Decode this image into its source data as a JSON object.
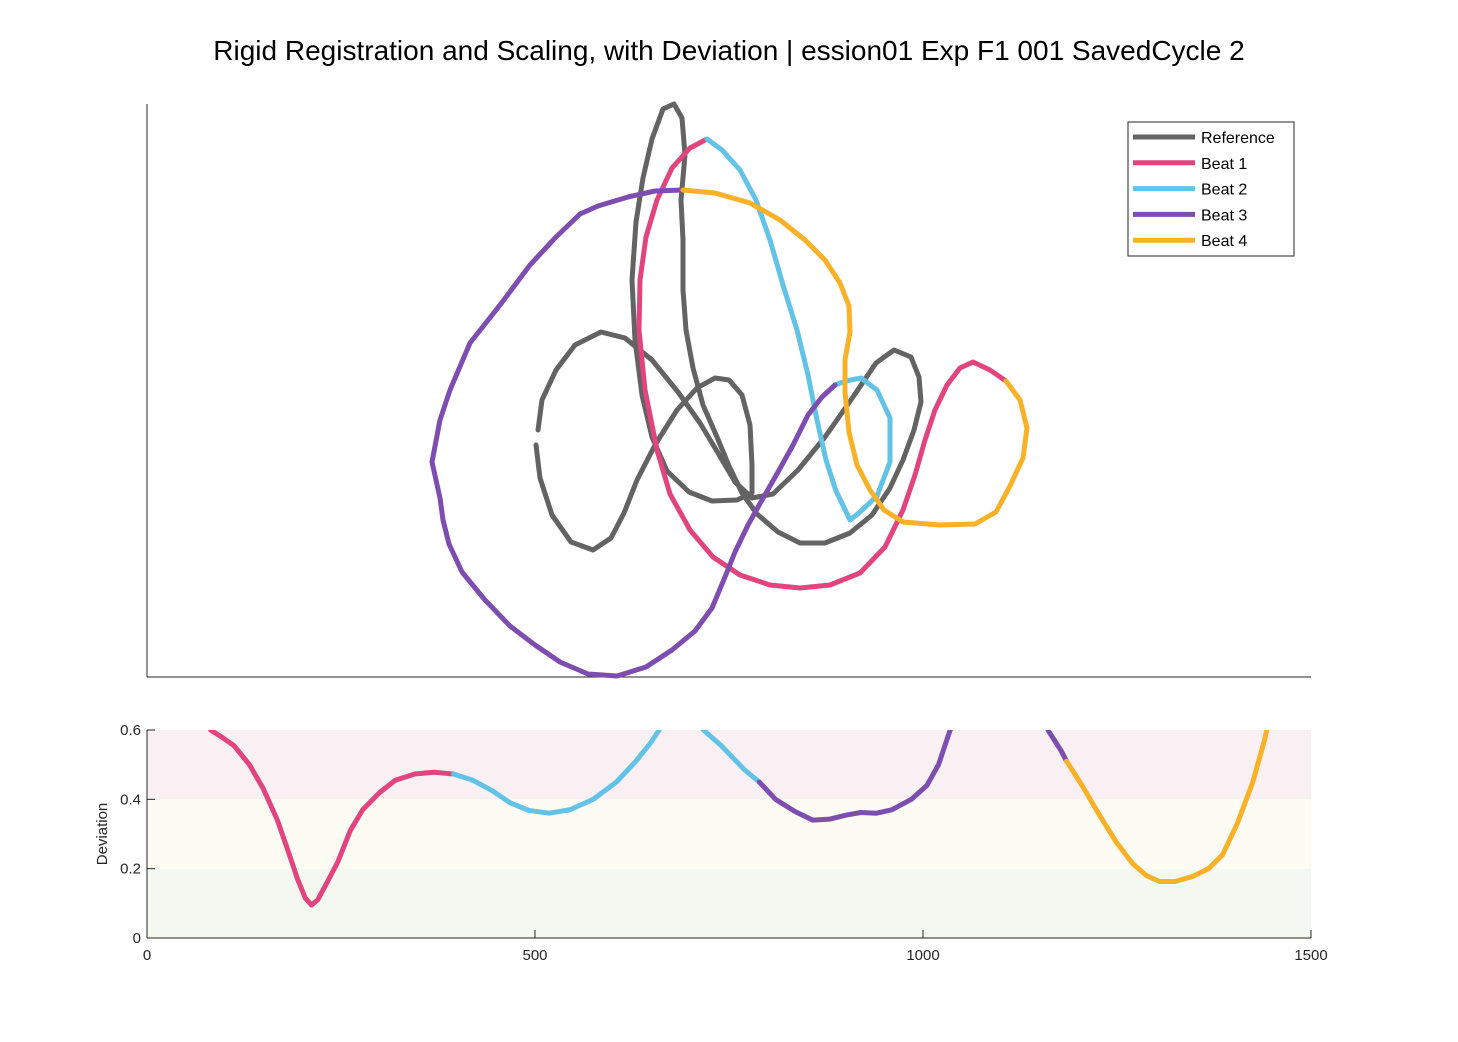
{
  "chart_data": [
    {
      "type": "line",
      "title": "Rigid Registration and Scaling, with Deviation | ession01 Exp F1 001 SavedCycle 2",
      "axes_visible": "left and bottom lines only, no ticks",
      "legend": {
        "placement": "top-right",
        "entries": [
          {
            "name": "Reference",
            "color": "#636363"
          },
          {
            "name": "Beat 1",
            "color": "#E2457D"
          },
          {
            "name": "Beat 2",
            "color": "#63C3E6"
          },
          {
            "name": "Beat 3",
            "color": "#7D4EB0"
          },
          {
            "name": "Beat 4",
            "color": "#F9B128"
          }
        ]
      },
      "series": [
        {
          "name": "Reference",
          "color": "#636363",
          "points": [
            [
              538,
              430
            ],
            [
              542,
              400
            ],
            [
              556,
              370
            ],
            [
              575,
              345
            ],
            [
              601,
              332
            ],
            [
              625,
              338
            ],
            [
              652,
              360
            ],
            [
              678,
              392
            ],
            [
              700,
              423
            ],
            [
              718,
              453
            ],
            [
              735,
              482
            ],
            [
              752,
              498
            ],
            [
              773,
              494
            ],
            [
              798,
              470
            ],
            [
              825,
              437
            ],
            [
              853,
              397
            ],
            [
              876,
              363
            ],
            [
              894,
              350
            ],
            [
              911,
              357
            ],
            [
              919,
              377
            ],
            [
              921,
              402
            ],
            [
              914,
              430
            ],
            [
              903,
              460
            ],
            [
              890,
              488
            ],
            [
              872,
              515
            ],
            [
              850,
              533
            ],
            [
              825,
              543
            ],
            [
              800,
              543
            ],
            [
              778,
              532
            ],
            [
              757,
              514
            ],
            [
              742,
              493
            ],
            [
              729,
              466
            ],
            [
              717,
              437
            ],
            [
              703,
              405
            ],
            [
              693,
              368
            ],
            [
              686,
              330
            ],
            [
              683,
              290
            ],
            [
              683,
              240
            ],
            [
              681,
              200
            ],
            [
              685,
              155
            ],
            [
              682,
              118
            ],
            [
              674,
              104
            ],
            [
              663,
              109
            ],
            [
              652,
              139
            ],
            [
              643,
              178
            ],
            [
              636,
              222
            ],
            [
              632,
              280
            ],
            [
              635,
              340
            ],
            [
              642,
              395
            ],
            [
              652,
              437
            ],
            [
              667,
              471
            ],
            [
              689,
              492
            ],
            [
              712,
              501
            ],
            [
              737,
              500
            ],
            [
              752,
              493
            ],
            [
              752,
              465
            ],
            [
              750,
              425
            ],
            [
              742,
              395
            ],
            [
              729,
              380
            ],
            [
              715,
              378
            ],
            [
              697,
              388
            ],
            [
              677,
              410
            ],
            [
              655,
              445
            ],
            [
              637,
              480
            ],
            [
              624,
              513
            ],
            [
              611,
              538
            ],
            [
              593,
              550
            ],
            [
              571,
              542
            ],
            [
              552,
              515
            ],
            [
              540,
              478
            ],
            [
              536,
              445
            ]
          ]
        },
        {
          "name": "Beat 1",
          "color": "#E2457D",
          "points": [
            [
              707,
              139
            ],
            [
              690,
              148
            ],
            [
              672,
              168
            ],
            [
              657,
              200
            ],
            [
              646,
              237
            ],
            [
              640,
              280
            ],
            [
              639,
              330
            ],
            [
              645,
              390
            ],
            [
              657,
              450
            ],
            [
              670,
              494
            ],
            [
              690,
              530
            ],
            [
              713,
              557
            ],
            [
              740,
              575
            ],
            [
              770,
              585
            ],
            [
              800,
              588
            ],
            [
              830,
              585
            ],
            [
              860,
              573
            ],
            [
              885,
              547
            ],
            [
              903,
              510
            ],
            [
              915,
              475
            ],
            [
              925,
              440
            ],
            [
              935,
              410
            ],
            [
              947,
              385
            ],
            [
              960,
              368
            ],
            [
              973,
              362
            ],
            [
              990,
              370
            ],
            [
              1006,
              381
            ]
          ]
        },
        {
          "name": "Beat 2",
          "color": "#63C3E6",
          "points": [
            [
              707,
              139
            ],
            [
              722,
              150
            ],
            [
              740,
              170
            ],
            [
              756,
              200
            ],
            [
              770,
              240
            ],
            [
              783,
              285
            ],
            [
              797,
              330
            ],
            [
              808,
              375
            ],
            [
              817,
              420
            ],
            [
              826,
              460
            ],
            [
              836,
              491
            ],
            [
              850,
              520
            ],
            [
              860,
              512
            ],
            [
              877,
              496
            ],
            [
              890,
              462
            ],
            [
              890,
              418
            ],
            [
              877,
              390
            ],
            [
              861,
              378
            ],
            [
              846,
              381
            ],
            [
              835,
              385
            ]
          ]
        },
        {
          "name": "Beat 3",
          "color": "#7D4EB0",
          "points": [
            [
              835,
              385
            ],
            [
              822,
              397
            ],
            [
              808,
              415
            ],
            [
              793,
              445
            ],
            [
              778,
              472
            ],
            [
              762,
              500
            ],
            [
              748,
              525
            ],
            [
              735,
              552
            ],
            [
              725,
              577
            ],
            [
              712,
              608
            ],
            [
              695,
              631
            ],
            [
              672,
              650
            ],
            [
              646,
              667
            ],
            [
              617,
              676
            ],
            [
              588,
              674
            ],
            [
              560,
              662
            ],
            [
              535,
              645
            ],
            [
              510,
              626
            ],
            [
              485,
              600
            ],
            [
              462,
              572
            ],
            [
              449,
              544
            ],
            [
              443,
              520
            ],
            [
              440,
              498
            ],
            [
              432,
              462
            ],
            [
              440,
              420
            ],
            [
              450,
              390
            ],
            [
              470,
              343
            ],
            [
              500,
              305
            ],
            [
              530,
              265
            ],
            [
              555,
              238
            ],
            [
              580,
              214
            ],
            [
              598,
              206
            ],
            [
              628,
              197
            ],
            [
              655,
              191
            ],
            [
              683,
              190
            ]
          ]
        },
        {
          "name": "Beat 4",
          "color": "#F9B128",
          "points": [
            [
              683,
              190
            ],
            [
              715,
              193
            ],
            [
              750,
              203
            ],
            [
              780,
              220
            ],
            [
              805,
              240
            ],
            [
              825,
              260
            ],
            [
              840,
              283
            ],
            [
              849,
              306
            ],
            [
              850,
              332
            ],
            [
              845,
              360
            ],
            [
              845,
              392
            ],
            [
              849,
              432
            ],
            [
              857,
              465
            ],
            [
              870,
              490
            ],
            [
              884,
              510
            ],
            [
              903,
              522
            ],
            [
              940,
              525
            ],
            [
              975,
              524
            ],
            [
              996,
              512
            ],
            [
              1010,
              486
            ],
            [
              1023,
              458
            ],
            [
              1027,
              428
            ],
            [
              1020,
              400
            ],
            [
              1006,
              381
            ]
          ]
        }
      ]
    },
    {
      "type": "line",
      "title": "",
      "xlabel": "",
      "ylabel": "Deviation",
      "xlim": [
        0,
        1500
      ],
      "ylim": [
        0,
        0.6
      ],
      "xticks": [
        0,
        500,
        1000,
        1500
      ],
      "yticks": [
        0,
        0.2,
        0.4,
        0.6
      ],
      "bands": [
        {
          "from": 0.4,
          "to": 0.6,
          "color": "#F9F0F3"
        },
        {
          "from": 0.2,
          "to": 0.4,
          "color": "#FDFCF4"
        },
        {
          "from": 0.0,
          "to": 0.2,
          "color": "#F4F8F1"
        }
      ],
      "series": [
        {
          "name": "Beat 1",
          "color": "#E2457D",
          "points": [
            [
              82,
              0.6
            ],
            [
              96,
              0.58
            ],
            [
              112,
              0.555
            ],
            [
              132,
              0.5
            ],
            [
              150,
              0.43
            ],
            [
              168,
              0.34
            ],
            [
              182,
              0.25
            ],
            [
              194,
              0.17
            ],
            [
              204,
              0.115
            ],
            [
              212,
              0.095
            ],
            [
              220,
              0.11
            ],
            [
              232,
              0.16
            ],
            [
              246,
              0.22
            ],
            [
              262,
              0.31
            ],
            [
              278,
              0.37
            ],
            [
              300,
              0.42
            ],
            [
              320,
              0.455
            ],
            [
              345,
              0.473
            ],
            [
              370,
              0.478
            ],
            [
              390,
              0.474
            ],
            [
              395,
              0.473
            ]
          ]
        },
        {
          "name": "Beat 2",
          "color": "#63C3E6",
          "points": [
            [
              395,
              0.473
            ],
            [
              420,
              0.455
            ],
            [
              445,
              0.425
            ],
            [
              468,
              0.39
            ],
            [
              492,
              0.368
            ],
            [
              518,
              0.36
            ],
            [
              545,
              0.37
            ],
            [
              575,
              0.4
            ],
            [
              605,
              0.45
            ],
            [
              630,
              0.51
            ],
            [
              648,
              0.56
            ],
            [
              660,
              0.6
            ],
            [
              717,
              0.6
            ],
            [
              740,
              0.555
            ],
            [
              770,
              0.485
            ],
            [
              789,
              0.45
            ]
          ]
        },
        {
          "name": "Beat 3",
          "color": "#7D4EB0",
          "points": [
            [
              789,
              0.45
            ],
            [
              810,
              0.4
            ],
            [
              835,
              0.365
            ],
            [
              858,
              0.34
            ],
            [
              880,
              0.343
            ],
            [
              902,
              0.355
            ],
            [
              920,
              0.362
            ],
            [
              940,
              0.36
            ],
            [
              960,
              0.37
            ],
            [
              985,
              0.4
            ],
            [
              1005,
              0.44
            ],
            [
              1020,
              0.5
            ],
            [
              1035,
              0.6
            ],
            [
              1161,
              0.6
            ],
            [
              1178,
              0.54
            ],
            [
              1185,
              0.51
            ]
          ]
        },
        {
          "name": "Beat 4",
          "color": "#F9B128",
          "points": [
            [
              1185,
              0.51
            ],
            [
              1205,
              0.44
            ],
            [
              1226,
              0.36
            ],
            [
              1248,
              0.28
            ],
            [
              1270,
              0.215
            ],
            [
              1288,
              0.18
            ],
            [
              1305,
              0.163
            ],
            [
              1325,
              0.163
            ],
            [
              1348,
              0.178
            ],
            [
              1368,
              0.2
            ],
            [
              1386,
              0.24
            ],
            [
              1405,
              0.33
            ],
            [
              1425,
              0.45
            ],
            [
              1440,
              0.57
            ],
            [
              1443,
              0.6
            ]
          ]
        }
      ]
    }
  ]
}
